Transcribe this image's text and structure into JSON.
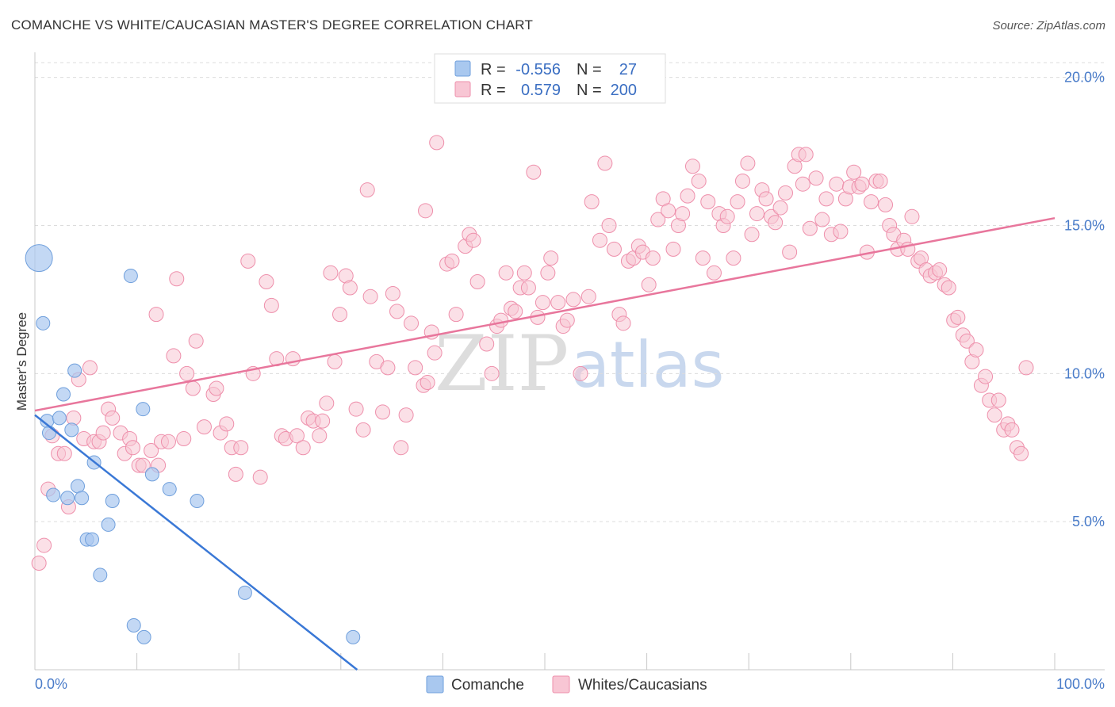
{
  "header": {
    "title": "COMANCHE VS WHITE/CAUCASIAN MASTER'S DEGREE CORRELATION CHART",
    "source": "Source: ZipAtlas.com"
  },
  "watermark": {
    "zip": "ZIP",
    "atlas": "atlas"
  },
  "legend": {
    "r_label": "R =",
    "n_label": "N =",
    "rows": [
      {
        "r": "-0.556",
        "n": "27",
        "color": "#a9c8ef"
      },
      {
        "r": "0.579",
        "n": "200",
        "color": "#f6b9cb"
      }
    ]
  },
  "bottom_legend": [
    {
      "label": "Comanche",
      "color": "#a9c8ef"
    },
    {
      "label": "Whites/Caucasians",
      "color": "#f6b9cb"
    }
  ],
  "colors": {
    "comanche_fill": "#a9c8ef",
    "comanche_stroke": "#6f9fdc",
    "comanche_line": "#3a78d6",
    "white_fill": "#f8c6d4",
    "white_stroke": "#ee8fab",
    "white_line": "#e8769c",
    "grid": "#dcdcdc",
    "tick_text": "#4a7cc9"
  },
  "chart_data": {
    "type": "scatter",
    "title": "COMANCHE VS WHITE/CAUCASIAN MASTER'S DEGREE CORRELATION CHART",
    "xlabel": "",
    "ylabel": "Master's Degree",
    "xlim": [
      0,
      100
    ],
    "ylim": [
      0,
      20.5
    ],
    "x_tick_labels": [
      "0.0%",
      "100.0%"
    ],
    "y_ticks": [
      5,
      10,
      15,
      20
    ],
    "y_tick_labels": [
      "5.0%",
      "10.0%",
      "15.0%",
      "20.0%"
    ],
    "grid": true,
    "series": [
      {
        "name": "Comanche",
        "r": -0.556,
        "n": 27,
        "trend": {
          "x0": 0,
          "y0": 8.6,
          "x1": 31.6,
          "y1": 0.0
        },
        "points": [
          [
            0.4,
            13.9,
            1
          ],
          [
            0.8,
            11.7,
            0
          ],
          [
            1.2,
            8.4,
            0
          ],
          [
            1.4,
            8.0,
            0
          ],
          [
            1.8,
            5.9,
            0
          ],
          [
            2.4,
            8.5,
            0
          ],
          [
            2.8,
            9.3,
            0
          ],
          [
            3.2,
            5.8,
            0
          ],
          [
            3.6,
            8.1,
            0
          ],
          [
            3.9,
            10.1,
            0
          ],
          [
            4.2,
            6.2,
            0
          ],
          [
            4.6,
            5.8,
            0
          ],
          [
            5.1,
            4.4,
            0
          ],
          [
            5.6,
            4.4,
            0
          ],
          [
            5.8,
            7.0,
            0
          ],
          [
            6.4,
            3.2,
            0
          ],
          [
            7.2,
            4.9,
            0
          ],
          [
            7.6,
            5.7,
            0
          ],
          [
            9.7,
            1.5,
            0
          ],
          [
            10.7,
            1.1,
            0
          ],
          [
            9.4,
            13.3,
            0
          ],
          [
            10.6,
            8.8,
            0
          ],
          [
            11.5,
            6.6,
            0
          ],
          [
            13.2,
            6.1,
            0
          ],
          [
            15.9,
            5.7,
            0
          ],
          [
            20.6,
            2.6,
            0
          ],
          [
            31.2,
            1.1,
            0
          ]
        ]
      },
      {
        "name": "Whites/Caucasians",
        "r": 0.579,
        "n": 200,
        "trend": {
          "x0": 0,
          "y0": 8.75,
          "x1": 100,
          "y1": 15.25
        },
        "points": [
          [
            0.4,
            3.6
          ],
          [
            0.9,
            4.2
          ],
          [
            1.3,
            6.1
          ],
          [
            1.7,
            7.9
          ],
          [
            2.3,
            7.3
          ],
          [
            2.9,
            7.3
          ],
          [
            3.3,
            5.5
          ],
          [
            3.8,
            8.5
          ],
          [
            4.3,
            9.8
          ],
          [
            4.8,
            7.8
          ],
          [
            5.4,
            10.2
          ],
          [
            5.8,
            7.7
          ],
          [
            6.3,
            7.7
          ],
          [
            6.7,
            8.0
          ],
          [
            7.2,
            8.8
          ],
          [
            7.6,
            8.5
          ],
          [
            8.4,
            8.0
          ],
          [
            8.8,
            7.3
          ],
          [
            9.3,
            7.8
          ],
          [
            9.6,
            7.5
          ],
          [
            10.2,
            6.9
          ],
          [
            10.6,
            6.9
          ],
          [
            11.4,
            7.4
          ],
          [
            12.1,
            6.9
          ],
          [
            12.4,
            7.7
          ],
          [
            11.9,
            12.0
          ],
          [
            13.1,
            7.7
          ],
          [
            13.9,
            13.2
          ],
          [
            14.6,
            7.8
          ],
          [
            14.9,
            10.0
          ],
          [
            13.6,
            10.6
          ],
          [
            15.5,
            9.5
          ],
          [
            15.8,
            11.1
          ],
          [
            16.6,
            8.2
          ],
          [
            17.5,
            9.3
          ],
          [
            17.8,
            9.5
          ],
          [
            18.2,
            8.0
          ],
          [
            18.8,
            8.3
          ],
          [
            19.3,
            7.5
          ],
          [
            19.7,
            6.6
          ],
          [
            20.2,
            7.5
          ],
          [
            20.9,
            13.8
          ],
          [
            21.4,
            10.0
          ],
          [
            22.1,
            6.5
          ],
          [
            22.7,
            13.1
          ],
          [
            23.2,
            12.3
          ],
          [
            23.7,
            10.5
          ],
          [
            24.2,
            7.9
          ],
          [
            24.6,
            7.8
          ],
          [
            25.3,
            10.5
          ],
          [
            25.7,
            7.9
          ],
          [
            26.3,
            7.5
          ],
          [
            26.8,
            8.5
          ],
          [
            27.3,
            8.4
          ],
          [
            27.9,
            7.9
          ],
          [
            28.2,
            8.4
          ],
          [
            28.6,
            9.0
          ],
          [
            29.0,
            13.4
          ],
          [
            29.4,
            10.4
          ],
          [
            29.9,
            12.0
          ],
          [
            30.5,
            13.3
          ],
          [
            30.9,
            12.9
          ],
          [
            31.5,
            8.8
          ],
          [
            32.2,
            8.1
          ],
          [
            32.6,
            16.2
          ],
          [
            32.9,
            12.6
          ],
          [
            33.5,
            10.4
          ],
          [
            34.1,
            8.7
          ],
          [
            34.6,
            10.2
          ],
          [
            35.1,
            12.7
          ],
          [
            35.5,
            12.1
          ],
          [
            35.9,
            7.5
          ],
          [
            36.4,
            8.6
          ],
          [
            36.9,
            11.7
          ],
          [
            37.3,
            10.2
          ],
          [
            38.1,
            9.6
          ],
          [
            38.5,
            9.7
          ],
          [
            38.9,
            11.4
          ],
          [
            39.2,
            10.7
          ],
          [
            38.3,
            15.5
          ],
          [
            39.4,
            17.8
          ],
          [
            40.4,
            13.7
          ],
          [
            40.9,
            13.8
          ],
          [
            41.3,
            12.0
          ],
          [
            42.2,
            14.3
          ],
          [
            42.6,
            14.7
          ],
          [
            43.0,
            14.5
          ],
          [
            43.4,
            13.1
          ],
          [
            44.3,
            11.0
          ],
          [
            44.8,
            10.0
          ],
          [
            45.3,
            11.6
          ],
          [
            45.7,
            11.8
          ],
          [
            46.2,
            13.4
          ],
          [
            46.7,
            12.2
          ],
          [
            47.1,
            12.1
          ],
          [
            47.6,
            12.9
          ],
          [
            48.0,
            13.4
          ],
          [
            48.4,
            12.9
          ],
          [
            48.9,
            16.8
          ],
          [
            49.3,
            11.9
          ],
          [
            49.8,
            12.4
          ],
          [
            50.3,
            13.4
          ],
          [
            50.6,
            13.9
          ],
          [
            51.3,
            12.4
          ],
          [
            51.8,
            11.6
          ],
          [
            52.2,
            11.8
          ],
          [
            52.8,
            12.5
          ],
          [
            53.5,
            10.0
          ],
          [
            54.3,
            12.6
          ],
          [
            54.6,
            15.8
          ],
          [
            55.4,
            14.5
          ],
          [
            55.9,
            17.1
          ],
          [
            56.3,
            15.0
          ],
          [
            56.8,
            14.2
          ],
          [
            57.3,
            12.0
          ],
          [
            57.7,
            11.7
          ],
          [
            58.2,
            13.8
          ],
          [
            58.7,
            13.9
          ],
          [
            59.2,
            14.3
          ],
          [
            59.6,
            14.1
          ],
          [
            60.2,
            13.0
          ],
          [
            60.6,
            13.9
          ],
          [
            61.1,
            15.2
          ],
          [
            61.6,
            15.9
          ],
          [
            62.1,
            15.5
          ],
          [
            62.6,
            14.2
          ],
          [
            63.1,
            15.0
          ],
          [
            63.5,
            15.4
          ],
          [
            64.0,
            16.0
          ],
          [
            64.5,
            17.0
          ],
          [
            65.1,
            16.5
          ],
          [
            65.5,
            13.9
          ],
          [
            66.0,
            15.8
          ],
          [
            66.6,
            13.4
          ],
          [
            67.1,
            15.4
          ],
          [
            67.5,
            15.0
          ],
          [
            67.9,
            15.3
          ],
          [
            68.5,
            13.9
          ],
          [
            68.9,
            15.8
          ],
          [
            69.4,
            16.5
          ],
          [
            69.9,
            17.1
          ],
          [
            70.3,
            14.7
          ],
          [
            70.8,
            15.4
          ],
          [
            71.3,
            16.2
          ],
          [
            71.7,
            15.9
          ],
          [
            72.2,
            15.3
          ],
          [
            72.6,
            15.1
          ],
          [
            73.1,
            15.6
          ],
          [
            73.6,
            16.1
          ],
          [
            74.0,
            14.1
          ],
          [
            74.5,
            17.0
          ],
          [
            74.9,
            17.4
          ],
          [
            75.3,
            16.4
          ],
          [
            75.6,
            17.4
          ],
          [
            76.0,
            14.9
          ],
          [
            76.6,
            16.6
          ],
          [
            77.2,
            15.2
          ],
          [
            77.6,
            15.9
          ],
          [
            78.1,
            14.7
          ],
          [
            78.6,
            16.4
          ],
          [
            79.0,
            14.8
          ],
          [
            79.5,
            15.9
          ],
          [
            79.9,
            16.3
          ],
          [
            80.3,
            16.8
          ],
          [
            80.8,
            16.3
          ],
          [
            81.1,
            16.4
          ],
          [
            81.6,
            14.1
          ],
          [
            82.0,
            15.8
          ],
          [
            82.5,
            16.5
          ],
          [
            82.9,
            16.5
          ],
          [
            83.4,
            15.7
          ],
          [
            83.8,
            15.0
          ],
          [
            84.2,
            14.7
          ],
          [
            84.6,
            14.2
          ],
          [
            85.2,
            14.5
          ],
          [
            85.6,
            14.2
          ],
          [
            86.0,
            15.3
          ],
          [
            86.6,
            13.8
          ],
          [
            86.9,
            13.9
          ],
          [
            87.4,
            13.5
          ],
          [
            87.8,
            13.3
          ],
          [
            88.3,
            13.4
          ],
          [
            88.7,
            13.5
          ],
          [
            89.2,
            13.0
          ],
          [
            89.6,
            12.9
          ],
          [
            90.1,
            11.8
          ],
          [
            90.5,
            11.9
          ],
          [
            91.0,
            11.3
          ],
          [
            91.4,
            11.1
          ],
          [
            91.9,
            10.4
          ],
          [
            92.3,
            10.8
          ],
          [
            92.8,
            9.6
          ],
          [
            93.2,
            9.9
          ],
          [
            93.6,
            9.1
          ],
          [
            94.1,
            8.6
          ],
          [
            94.5,
            9.1
          ],
          [
            95.0,
            8.1
          ],
          [
            95.4,
            8.3
          ],
          [
            95.8,
            8.1
          ],
          [
            96.3,
            7.5
          ],
          [
            96.7,
            7.3
          ],
          [
            97.2,
            10.2
          ]
        ]
      }
    ]
  }
}
